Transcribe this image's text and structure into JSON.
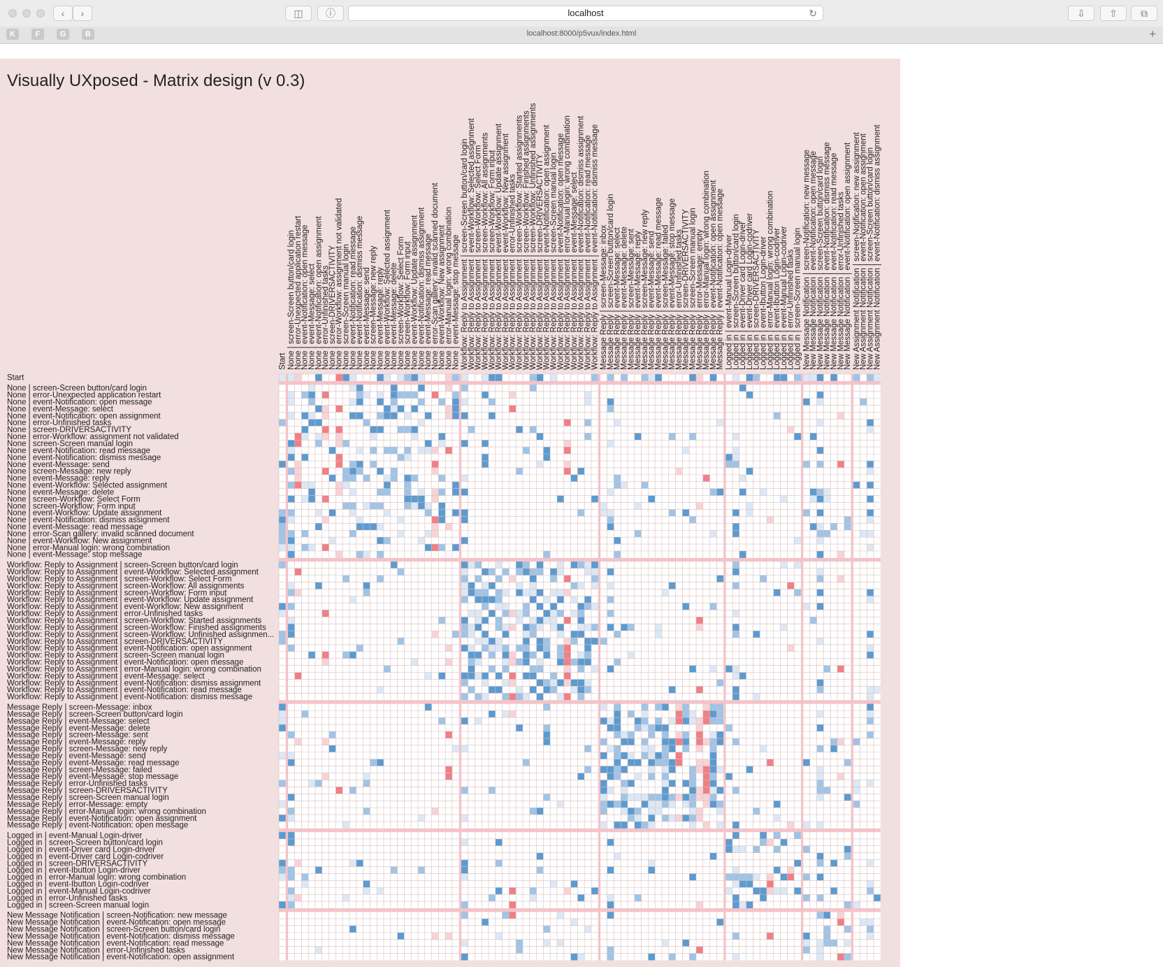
{
  "browser": {
    "tab_title": "localhost",
    "url": "localhost:8000/p5vux/index.html",
    "favorites": [
      "K",
      "F",
      "G",
      "B"
    ]
  },
  "page": {
    "title": "Visually UXposed - Matrix design (v 0.3)"
  },
  "colors": {
    "page_bg": "#f2dfe0",
    "blue_strong": "#5b9bd0",
    "blue_mid": "#9fc4e6",
    "blue_light": "#dbe8f5",
    "red_strong": "#f07f86",
    "red_light": "#f8d3d6",
    "grid_line": "#d9bfc2",
    "group_separator": "#f5c3c8"
  },
  "matrix": {
    "row_labels": [
      "Start",
      "None | screen-Screen button/card login",
      "None | error-Unexpected application restart",
      "None | event-Notification: open message",
      "None | event-Message: select",
      "None | event-Notification: open assignment",
      "None | error-Unfinished tasks",
      "None | screen-DRIVERSACTIVITY",
      "None | error-Workflow: assignment not validated",
      "None | screen-Screen manual login",
      "None | event-Notification: read message",
      "None | event-Notification: dismiss message",
      "None | event-Message: send",
      "None | screen-Message: new reply",
      "None | event-Message: reply",
      "None | event-Workflow: Selected assignment",
      "None | event-Message: delete",
      "None | screen-Workflow: Select Form",
      "None | screen-Workflow: Form input",
      "None | event-Workflow: Update assignment",
      "None | event-Notification: dismiss assignment",
      "None | event-Message: read message",
      "None | error-Scan gallery: invalid scanned document",
      "None | event-Workflow: New assignment",
      "None | error-Manual login: wrong combination",
      "None | event-Message: stop message",
      "Workflow: Reply to Assignment | screen-Screen button/card login",
      "Workflow: Reply to Assignment | event-Workflow: Selected assignment",
      "Workflow: Reply to Assignment | screen-Workflow: Select Form",
      "Workflow: Reply to Assignment | screen-Workflow: All assignments",
      "Workflow: Reply to Assignment | screen-Workflow: Form input",
      "Workflow: Reply to Assignment | event-Workflow: Update assignment",
      "Workflow: Reply to Assignment | event-Workflow: New assignment",
      "Workflow: Reply to Assignment | error-Unfinished tasks",
      "Workflow: Reply to Assignment | screen-Workflow: Started assignments",
      "Workflow: Reply to Assignment | screen-Workflow: Finished assignments",
      "Workflow: Reply to Assignment | screen-Workflow: Unfinished assignmen...",
      "Workflow: Reply to Assignment | screen-DRIVERSACTIVITY",
      "Workflow: Reply to Assignment | event-Notification: open assignment",
      "Workflow: Reply to Assignment | screen-Screen manual login",
      "Workflow: Reply to Assignment | event-Notification: open message",
      "Workflow: Reply to Assignment | error-Manual login: wrong combination",
      "Workflow: Reply to Assignment | event-Message: select",
      "Workflow: Reply to Assignment | event-Notification: dismiss assignment",
      "Workflow: Reply to Assignment | event-Notification: read message",
      "Workflow: Reply to Assignment | event-Notification: dismiss message",
      "Message Reply | screen-Message: inbox",
      "Message Reply | screen-Screen button/card login",
      "Message Reply | event-Message: select",
      "Message Reply | event-Message: delete",
      "Message Reply | screen-Message: sent",
      "Message Reply | event-Message: reply",
      "Message Reply | screen-Message: new reply",
      "Message Reply | event-Message: send",
      "Message Reply | event-Message: read message",
      "Message Reply | screen-Message: failed",
      "Message Reply | event-Message: stop message",
      "Message Reply | error-Unfinished tasks",
      "Message Reply | screen-DRIVERSACTIVITY",
      "Message Reply | screen-Screen manual login",
      "Message Reply | error-Message: empty",
      "Message Reply | error-Manual login: wrong combination",
      "Message Reply | event-Notification: open assignment",
      "Message Reply | event-Notification: open message",
      "Logged in | event-Manual Login-driver",
      "Logged in | screen-Screen button/card login",
      "Logged in | event-Driver card Login-driver",
      "Logged in | event-Driver card Login-codriver",
      "Logged in | screen-DRIVERSACTIVITY",
      "Logged in | event-Ibutton Login-driver",
      "Logged in | error-Manual login: wrong combination",
      "Logged in | event-Ibutton Login-codriver",
      "Logged in | event-Manual Login-codriver",
      "Logged in | error-Unfinished tasks",
      "Logged in | screen-Screen manual login",
      "New Message Notification | screen-Notification: new message",
      "New Message Notification | event-Notification: open message",
      "New Message Notification | screen-Screen button/card login",
      "New Message Notification | event-Notification: dismiss message",
      "New Message Notification | event-Notification: read message",
      "New Message Notification | error-Unfinished tasks",
      "New Message Notification | event-Notification: open assignment"
    ],
    "column_labels": [
      "Start",
      "None | screen-Screen button/card login",
      "None | error-Unexpected application restart",
      "None | event-Notification: open message",
      "None | event-Message: select",
      "None | event-Notification: open assignment",
      "None | error-Unfinished tasks",
      "None | screen-DRIVERSACTIVITY",
      "None | error-Workflow: assignment not validated",
      "None | screen-Screen manual login",
      "None | event-Notification: read message",
      "None | event-Notification: dismiss message",
      "None | event-Message: send",
      "None | screen-Message: new reply",
      "None | event-Message: reply",
      "None | event-Workflow: Selected assignment",
      "None | event-Message: delete",
      "None | screen-Workflow: Select Form",
      "None | screen-Workflow: Form input",
      "None | event-Workflow: Update assignment",
      "None | event-Notification: dismiss assignment",
      "None | event-Message: read message",
      "None | error-Scan gallery: invalid scanned document",
      "None | event-Workflow: New assignment",
      "None | error-Manual login: wrong combination",
      "None | event-Message: stop message",
      "Workflow: Reply to Assignment | screen-Screen button/card login",
      "Workflow: Reply to Assignment | event-Workflow: Selected assignment",
      "Workflow: Reply to Assignment | screen-Workflow: Select Form",
      "Workflow: Reply to Assignment | screen-Workflow: All assignments",
      "Workflow: Reply to Assignment | screen-Workflow: Form input",
      "Workflow: Reply to Assignment | event-Workflow: Update assignment",
      "Workflow: Reply to Assignment | event-Workflow: New assignment",
      "Workflow: Reply to Assignment | error-Unfinished tasks",
      "Workflow: Reply to Assignment | screen-Workflow: Started assignments",
      "Workflow: Reply to Assignment | screen-Workflow: Finished assignments",
      "Workflow: Reply to Assignment | screen-Workflow: Unfinished assignments",
      "Workflow: Reply to Assignment | screen-DRIVERSACTIVITY",
      "Workflow: Reply to Assignment | event-Notification: open assignment",
      "Workflow: Reply to Assignment | screen-Screen manual login",
      "Workflow: Reply to Assignment | event-Notification: open message",
      "Workflow: Reply to Assignment | error-Manual login: wrong combination",
      "Workflow: Reply to Assignment | event-Message: select",
      "Workflow: Reply to Assignment | event-Notification: dismiss assignment",
      "Workflow: Reply to Assignment | event-Notification: read message",
      "Workflow: Reply to Assignment | event-Notification: dismiss message",
      "Message Reply | screen-Message: inbox",
      "Message Reply | screen-Screen button/card login",
      "Message Reply | event-Message: select",
      "Message Reply | event-Message: delete",
      "Message Reply | screen-Message: sent",
      "Message Reply | event-Message: reply",
      "Message Reply | screen-Message: new reply",
      "Message Reply | event-Message: send",
      "Message Reply | event-Message: read message",
      "Message Reply | screen-Message: failed",
      "Message Reply | event-Message: stop message",
      "Message Reply | error-Unfinished tasks",
      "Message Reply | screen-DRIVERSACTIVITY",
      "Message Reply | screen-Screen manual login",
      "Message Reply | error-Message: empty",
      "Message Reply | error-Manual login: wrong combination",
      "Message Reply | event-Notification: open assignment",
      "Message Reply | event-Notification: open message",
      "Logged in | event-Manual Login-driver",
      "Logged in | screen-Screen button/card login",
      "Logged in | event-Driver card Login-driver",
      "Logged in | event-Driver card Login-codriver",
      "Logged in | screen-DRIVERSACTIVITY",
      "Logged in | event-Ibutton Login-driver",
      "Logged in | error-Manual login: wrong combination",
      "Logged in | event-Ibutton Login-codriver",
      "Logged in | event-Manual Login-codriver",
      "Logged in | error-Unfinished tasks",
      "Logged in | screen-Screen manual login",
      "New Message Notification | screen-Notification: new message",
      "New Message Notification | event-Notification: open message",
      "New Message Notification | screen-Screen button/card login",
      "New Message Notification | event-Notification: dismiss message",
      "New Message Notification | event-Notification: read message",
      "New Message Notification | error-Unfinished tasks",
      "New Message Notification | event-Notification: open assignment",
      "New Assignment Notification | screen-Notification: new assignment",
      "New Assignment Notification | event-Notification: open assignment",
      "New Assignment Notification | screen-Screen button/card login",
      "New Assignment Notification | event-Notification: dismiss assignment"
    ],
    "row_groups": [
      "Start",
      "None",
      "Workflow: Reply to Assignment",
      "Message Reply",
      "Logged in",
      "New Message Notification"
    ],
    "column_groups": [
      "Start",
      "None",
      "Workflow: Reply to Assignment",
      "Message Reply",
      "Logged in",
      "New Message Notification",
      "New Assignment Notification"
    ]
  }
}
